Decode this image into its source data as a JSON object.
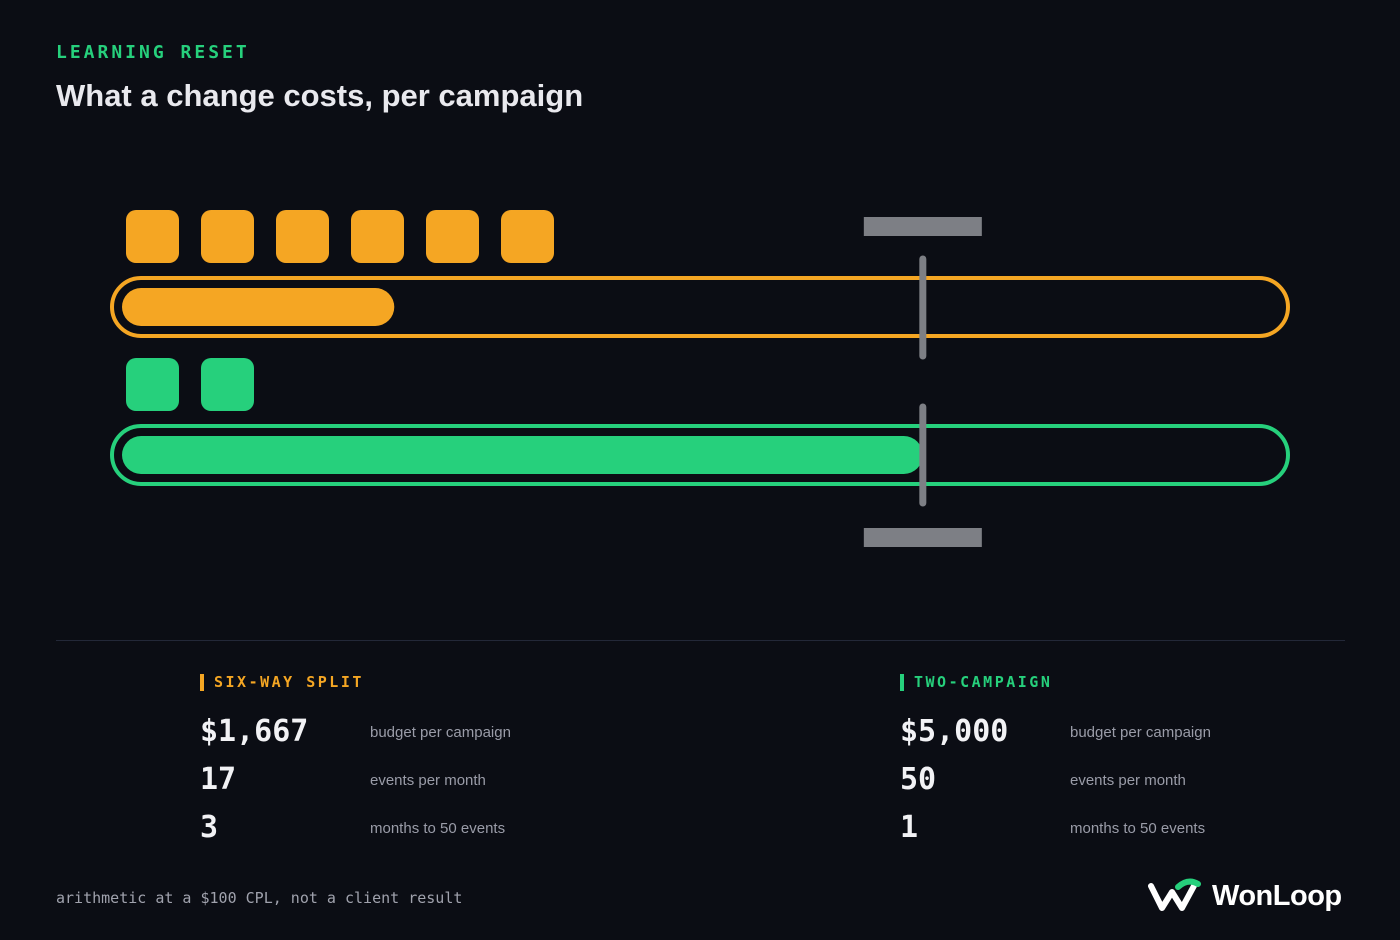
{
  "header": {
    "eyebrow": "LEARNING RESET",
    "title": "What a change costs, per campaign"
  },
  "colors": {
    "background": "#0b0d14",
    "six_way": "#f5a623",
    "two_campaign": "#26d07c",
    "threshold": "#7d7f85"
  },
  "chart_data": {
    "type": "bar",
    "orientation": "horizontal",
    "threshold": 50,
    "scale_max": 72.3,
    "series": [
      {
        "key": "six_way",
        "campaign_count": 6,
        "events_per_month": 17
      },
      {
        "key": "two_campaign",
        "campaign_count": 2,
        "events_per_month": 50
      }
    ]
  },
  "stats": {
    "six_way": {
      "heading": "SIX-WAY SPLIT",
      "rows": [
        {
          "value": "$1,667",
          "label": "budget per campaign"
        },
        {
          "value": "17",
          "label": "events per month"
        },
        {
          "value": "3",
          "label": "months to 50 events"
        }
      ]
    },
    "two_campaign": {
      "heading": "TWO-CAMPAIGN",
      "rows": [
        {
          "value": "$5,000",
          "label": "budget per campaign"
        },
        {
          "value": "50",
          "label": "events per month"
        },
        {
          "value": "1",
          "label": "months to 50 events"
        }
      ]
    }
  },
  "footnote": "arithmetic at a $100 CPL, not a client result",
  "brand": {
    "name": "WonLoop",
    "icon": "wonloop-logo-icon"
  }
}
